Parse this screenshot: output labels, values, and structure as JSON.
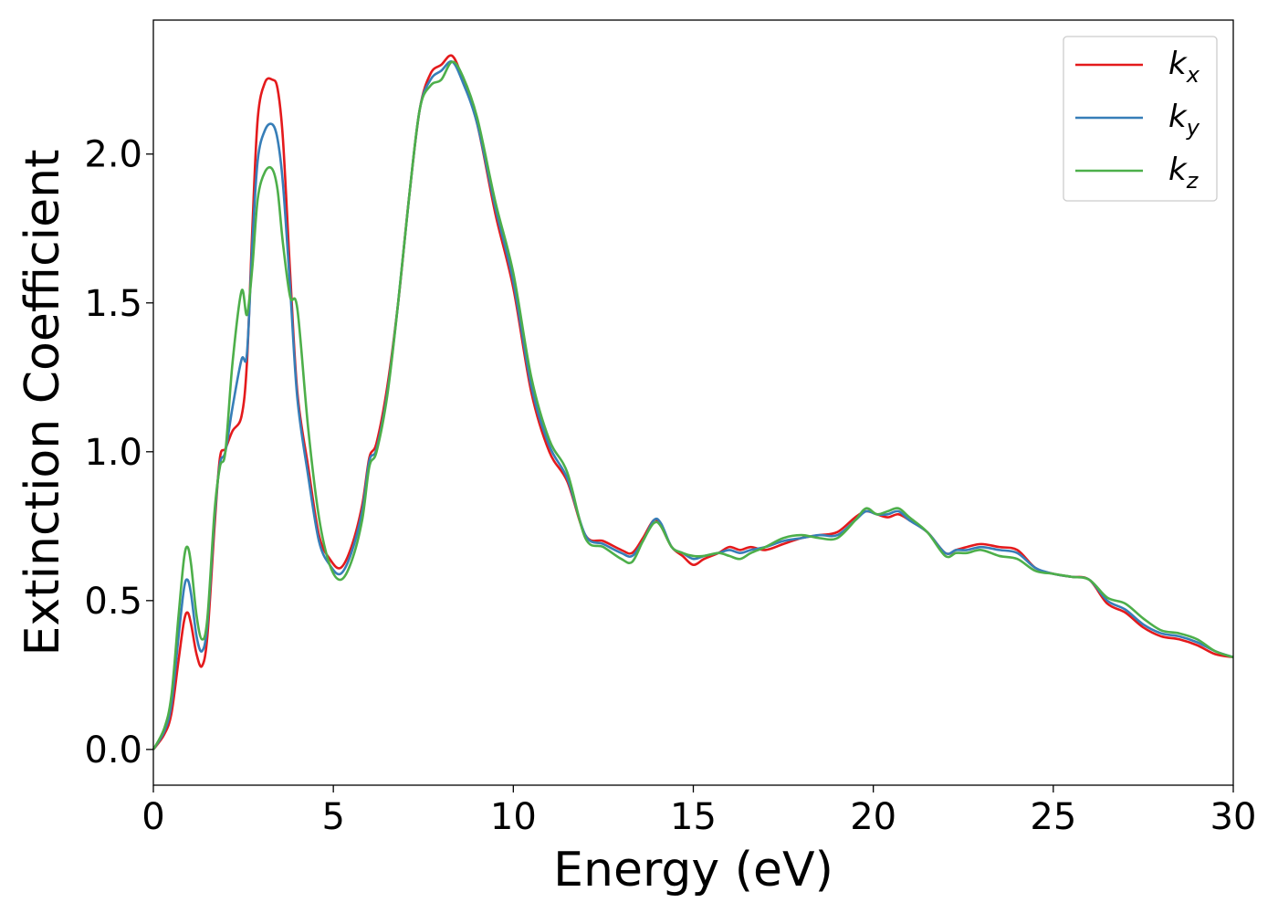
{
  "chart_data": {
    "type": "line",
    "xlabel": "Energy (eV)",
    "ylabel": "Extinction Coefficient",
    "xlim": [
      0,
      30
    ],
    "ylim": [
      -0.12,
      2.45
    ],
    "xticks": [
      0,
      5,
      10,
      15,
      20,
      25,
      30
    ],
    "xtick_labels": [
      "0",
      "5",
      "10",
      "15",
      "20",
      "25",
      "30"
    ],
    "yticks": [
      0.0,
      0.5,
      1.0,
      1.5,
      2.0
    ],
    "ytick_labels": [
      "0.0",
      "0.5",
      "1.0",
      "1.5",
      "2.0"
    ],
    "grid": false,
    "legend_position": "top-right",
    "series": [
      {
        "name": "k_x",
        "label_main": "k",
        "label_sub": "x",
        "color": "#e41a1c",
        "x": [
          0,
          0.3,
          0.5,
          0.7,
          0.85,
          0.95,
          1.05,
          1.2,
          1.35,
          1.5,
          1.7,
          1.85,
          2.0,
          2.2,
          2.45,
          2.6,
          2.75,
          2.9,
          3.1,
          3.3,
          3.45,
          3.6,
          3.8,
          4.0,
          4.3,
          4.6,
          4.9,
          5.2,
          5.5,
          5.8,
          6.0,
          6.2,
          6.5,
          6.8,
          7.1,
          7.4,
          7.7,
          8.0,
          8.3,
          8.6,
          9.0,
          9.5,
          10.0,
          10.5,
          11.0,
          11.5,
          12.0,
          12.5,
          13.0,
          13.3,
          13.6,
          13.9,
          14.1,
          14.4,
          14.7,
          15.0,
          15.3,
          15.7,
          16.0,
          16.3,
          16.6,
          17.0,
          17.5,
          18.0,
          18.5,
          19.0,
          19.5,
          19.8,
          20.1,
          20.4,
          20.7,
          21.0,
          21.5,
          22.0,
          22.3,
          22.6,
          23.0,
          23.5,
          24.0,
          24.5,
          25.0,
          25.5,
          26.0,
          26.5,
          27.0,
          27.5,
          28.0,
          28.5,
          29.0,
          29.5,
          30.0
        ],
        "y": [
          0.0,
          0.05,
          0.12,
          0.3,
          0.43,
          0.46,
          0.42,
          0.32,
          0.28,
          0.38,
          0.75,
          0.98,
          1.01,
          1.07,
          1.12,
          1.3,
          1.75,
          2.12,
          2.24,
          2.25,
          2.22,
          2.05,
          1.6,
          1.2,
          0.95,
          0.72,
          0.64,
          0.61,
          0.68,
          0.82,
          0.98,
          1.03,
          1.22,
          1.5,
          1.85,
          2.15,
          2.27,
          2.3,
          2.33,
          2.25,
          2.1,
          1.8,
          1.55,
          1.2,
          1.0,
          0.9,
          0.72,
          0.7,
          0.67,
          0.66,
          0.71,
          0.77,
          0.75,
          0.68,
          0.65,
          0.62,
          0.64,
          0.66,
          0.68,
          0.67,
          0.68,
          0.67,
          0.69,
          0.71,
          0.72,
          0.73,
          0.78,
          0.8,
          0.79,
          0.78,
          0.79,
          0.77,
          0.73,
          0.66,
          0.67,
          0.68,
          0.69,
          0.68,
          0.67,
          0.61,
          0.59,
          0.58,
          0.57,
          0.49,
          0.46,
          0.41,
          0.38,
          0.37,
          0.35,
          0.32,
          0.31
        ]
      },
      {
        "name": "k_y",
        "label_main": "k",
        "label_sub": "y",
        "color": "#377eb8",
        "x": [
          0,
          0.3,
          0.5,
          0.7,
          0.85,
          0.95,
          1.05,
          1.2,
          1.35,
          1.5,
          1.7,
          1.85,
          2.0,
          2.2,
          2.45,
          2.6,
          2.75,
          2.9,
          3.1,
          3.3,
          3.45,
          3.6,
          3.8,
          4.0,
          4.3,
          4.6,
          4.9,
          5.2,
          5.5,
          5.8,
          6.0,
          6.2,
          6.5,
          6.8,
          7.1,
          7.4,
          7.7,
          8.0,
          8.3,
          8.6,
          9.0,
          9.5,
          10.0,
          10.5,
          11.0,
          11.5,
          12.0,
          12.5,
          13.0,
          13.3,
          13.6,
          13.9,
          14.1,
          14.4,
          14.7,
          15.0,
          15.3,
          15.7,
          16.0,
          16.3,
          16.6,
          17.0,
          17.5,
          18.0,
          18.5,
          19.0,
          19.5,
          19.8,
          20.1,
          20.4,
          20.7,
          21.0,
          21.5,
          22.0,
          22.3,
          22.6,
          23.0,
          23.5,
          24.0,
          24.5,
          25.0,
          25.5,
          26.0,
          26.5,
          27.0,
          27.5,
          28.0,
          28.5,
          29.0,
          29.5,
          30.0
        ],
        "y": [
          0.0,
          0.06,
          0.15,
          0.38,
          0.54,
          0.57,
          0.52,
          0.38,
          0.33,
          0.42,
          0.78,
          0.96,
          1.0,
          1.15,
          1.31,
          1.33,
          1.7,
          1.98,
          2.08,
          2.1,
          2.05,
          1.9,
          1.55,
          1.18,
          0.92,
          0.7,
          0.62,
          0.59,
          0.66,
          0.8,
          0.97,
          1.01,
          1.2,
          1.5,
          1.85,
          2.15,
          2.25,
          2.28,
          2.31,
          2.24,
          2.1,
          1.82,
          1.57,
          1.22,
          1.02,
          0.91,
          0.72,
          0.69,
          0.66,
          0.65,
          0.7,
          0.77,
          0.76,
          0.68,
          0.66,
          0.64,
          0.65,
          0.66,
          0.67,
          0.66,
          0.67,
          0.68,
          0.7,
          0.71,
          0.72,
          0.72,
          0.77,
          0.8,
          0.79,
          0.79,
          0.8,
          0.77,
          0.73,
          0.66,
          0.67,
          0.67,
          0.68,
          0.67,
          0.66,
          0.61,
          0.59,
          0.58,
          0.57,
          0.5,
          0.47,
          0.42,
          0.39,
          0.38,
          0.36,
          0.33,
          0.31
        ]
      },
      {
        "name": "k_z",
        "label_main": "k",
        "label_sub": "z",
        "color": "#4daf4a",
        "x": [
          0,
          0.3,
          0.5,
          0.7,
          0.85,
          0.95,
          1.05,
          1.2,
          1.35,
          1.5,
          1.7,
          1.85,
          2.0,
          2.2,
          2.45,
          2.6,
          2.75,
          2.9,
          3.1,
          3.3,
          3.45,
          3.6,
          3.8,
          4.0,
          4.3,
          4.6,
          4.9,
          5.2,
          5.5,
          5.8,
          6.0,
          6.2,
          6.5,
          6.8,
          7.1,
          7.4,
          7.7,
          8.0,
          8.3,
          8.6,
          9.0,
          9.5,
          10.0,
          10.5,
          11.0,
          11.5,
          12.0,
          12.5,
          13.0,
          13.3,
          13.6,
          13.9,
          14.1,
          14.4,
          14.7,
          15.0,
          15.3,
          15.7,
          16.0,
          16.3,
          16.6,
          17.0,
          17.5,
          18.0,
          18.5,
          19.0,
          19.5,
          19.8,
          20.1,
          20.4,
          20.7,
          21.0,
          21.5,
          22.0,
          22.3,
          22.6,
          23.0,
          23.5,
          24.0,
          24.5,
          25.0,
          25.5,
          26.0,
          26.5,
          27.0,
          27.5,
          28.0,
          28.5,
          29.0,
          29.5,
          30.0
        ],
        "y": [
          0.0,
          0.07,
          0.18,
          0.45,
          0.64,
          0.68,
          0.62,
          0.45,
          0.37,
          0.44,
          0.8,
          0.95,
          1.0,
          1.3,
          1.54,
          1.46,
          1.62,
          1.85,
          1.94,
          1.95,
          1.88,
          1.7,
          1.52,
          1.48,
          1.08,
          0.78,
          0.62,
          0.57,
          0.63,
          0.77,
          0.95,
          1.0,
          1.19,
          1.5,
          1.85,
          2.15,
          2.23,
          2.25,
          2.31,
          2.26,
          2.12,
          1.84,
          1.6,
          1.25,
          1.04,
          0.93,
          0.71,
          0.68,
          0.64,
          0.63,
          0.7,
          0.76,
          0.75,
          0.68,
          0.66,
          0.65,
          0.65,
          0.66,
          0.65,
          0.64,
          0.66,
          0.68,
          0.71,
          0.72,
          0.71,
          0.71,
          0.77,
          0.81,
          0.79,
          0.8,
          0.81,
          0.78,
          0.73,
          0.65,
          0.66,
          0.66,
          0.67,
          0.65,
          0.64,
          0.6,
          0.59,
          0.58,
          0.57,
          0.51,
          0.49,
          0.44,
          0.4,
          0.39,
          0.37,
          0.33,
          0.31
        ]
      }
    ]
  }
}
